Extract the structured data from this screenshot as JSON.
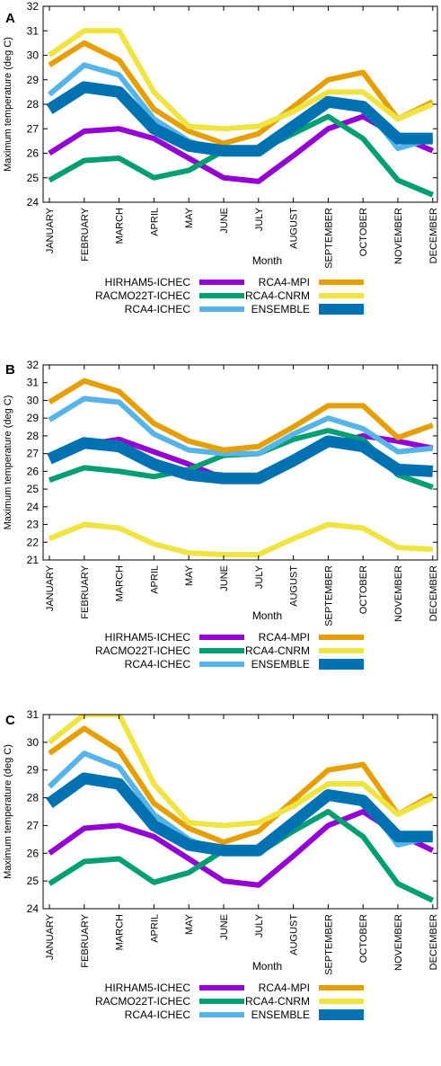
{
  "chart_data": [
    {
      "panel": "A",
      "type": "line",
      "xlabel": "Month",
      "ylabel": "Maximum temperature (deg C)",
      "ylim": [
        24,
        32
      ],
      "yticks": [
        "24",
        "25",
        "26",
        "27",
        "28",
        "29",
        "30",
        "31",
        "32"
      ],
      "categories": [
        "JANUARY",
        "FEBRUARY",
        "MARCH",
        "APRIL",
        "MAY",
        "JUNE",
        "JULY",
        "AUGUST",
        "SEPTEMBER",
        "OCTOBER",
        "NOVEMBER",
        "DECEMBER"
      ],
      "grid": false,
      "legend_position": "bottom",
      "series": [
        {
          "name": "HIRHAM5-ICHEC",
          "color": "#9400d3",
          "values": [
            26.0,
            26.9,
            27.0,
            26.6,
            25.8,
            25.0,
            24.85,
            25.9,
            27.0,
            27.5,
            26.7,
            26.1
          ]
        },
        {
          "name": "RACMO22T-ICHEC",
          "color": "#009e73",
          "values": [
            24.9,
            25.7,
            25.8,
            25.0,
            25.3,
            26.1,
            26.1,
            26.8,
            27.5,
            26.6,
            24.9,
            24.3
          ]
        },
        {
          "name": "RCA4-ICHEC",
          "color": "#56b4e9",
          "values": [
            28.4,
            29.6,
            29.2,
            27.4,
            26.5,
            26.0,
            26.0,
            27.0,
            28.2,
            28.0,
            26.2,
            26.6
          ]
        },
        {
          "name": "RCA4-MPI",
          "color": "#e69f00",
          "values": [
            29.6,
            30.5,
            29.8,
            27.8,
            26.9,
            26.4,
            26.8,
            27.9,
            29.0,
            29.3,
            27.4,
            28.1
          ]
        },
        {
          "name": "RCA4-CNRM",
          "color": "#f0e442",
          "values": [
            30.0,
            31.0,
            31.0,
            28.5,
            27.1,
            27.0,
            27.1,
            27.7,
            28.5,
            28.5,
            27.4,
            28.0
          ]
        },
        {
          "name": "ENSEMBLE",
          "color": "#0072b2",
          "values": [
            27.8,
            28.7,
            28.5,
            27.0,
            26.3,
            26.1,
            26.1,
            27.1,
            28.1,
            27.9,
            26.6,
            26.6
          ]
        }
      ]
    },
    {
      "panel": "B",
      "type": "line",
      "xlabel": "Month",
      "ylabel": "Maximum temperature (deg C)",
      "ylim": [
        21,
        32
      ],
      "yticks": [
        "21",
        "22",
        "23",
        "24",
        "25",
        "26",
        "27",
        "28",
        "29",
        "30",
        "31",
        "32"
      ],
      "categories": [
        "JANUARY",
        "FEBRUARY",
        "MARCH",
        "APRIL",
        "MAY",
        "JUNE",
        "JULY",
        "AUGUST",
        "SEPTEMBER",
        "OCTOBER",
        "NOVEMBER",
        "DECEMBER"
      ],
      "grid": false,
      "legend_position": "bottom",
      "series": [
        {
          "name": "HIRHAM5-ICHEC",
          "color": "#9400d3",
          "values": [
            26.8,
            27.5,
            27.8,
            27.1,
            26.4,
            25.6,
            25.6,
            26.5,
            27.5,
            28.0,
            27.7,
            27.3
          ]
        },
        {
          "name": "RACMO22T-ICHEC",
          "color": "#009e73",
          "values": [
            25.5,
            26.2,
            26.0,
            25.7,
            26.1,
            26.9,
            27.0,
            27.8,
            28.3,
            27.8,
            25.8,
            25.1
          ]
        },
        {
          "name": "RCA4-ICHEC",
          "color": "#56b4e9",
          "values": [
            28.9,
            30.1,
            29.9,
            28.1,
            27.2,
            27.0,
            27.0,
            28.1,
            29.0,
            28.4,
            27.1,
            27.3
          ]
        },
        {
          "name": "RCA4-MPI",
          "color": "#e69f00",
          "values": [
            29.9,
            31.1,
            30.5,
            28.7,
            27.7,
            27.2,
            27.4,
            28.5,
            29.7,
            29.7,
            27.9,
            28.6
          ]
        },
        {
          "name": "RCA4-CNRM",
          "color": "#f0e442",
          "values": [
            22.2,
            23.0,
            22.8,
            21.9,
            21.4,
            21.3,
            21.3,
            22.2,
            23.0,
            22.8,
            21.7,
            21.6
          ]
        },
        {
          "name": "ENSEMBLE",
          "color": "#0072b2",
          "values": [
            26.7,
            27.6,
            27.4,
            26.4,
            25.8,
            25.6,
            25.6,
            26.6,
            27.7,
            27.4,
            26.1,
            26.0
          ]
        }
      ]
    },
    {
      "panel": "C",
      "type": "line",
      "xlabel": "Month",
      "ylabel": "Maximum temperature (deg C)",
      "ylim": [
        24,
        31
      ],
      "yticks": [
        "24",
        "25",
        "26",
        "27",
        "28",
        "29",
        "30",
        "31"
      ],
      "categories": [
        "JANUARY",
        "FEBRUARY",
        "MARCH",
        "APRIL",
        "MAY",
        "JUNE",
        "JULY",
        "AUGUST",
        "SEPTEMBER",
        "OCTOBER",
        "NOVEMBER",
        "DECEMBER"
      ],
      "grid": false,
      "legend_position": "bottom",
      "series": [
        {
          "name": "HIRHAM5-ICHEC",
          "color": "#9400d3",
          "values": [
            26.0,
            26.9,
            27.0,
            26.6,
            25.8,
            25.0,
            24.85,
            25.9,
            27.0,
            27.5,
            26.7,
            26.1
          ]
        },
        {
          "name": "RACMO22T-ICHEC",
          "color": "#009e73",
          "values": [
            24.9,
            25.7,
            25.8,
            24.95,
            25.3,
            26.1,
            26.0,
            26.8,
            27.5,
            26.6,
            24.9,
            24.3
          ]
        },
        {
          "name": "RCA4-ICHEC",
          "color": "#56b4e9",
          "values": [
            28.4,
            29.6,
            29.1,
            27.4,
            26.5,
            26.0,
            26.0,
            27.0,
            28.2,
            28.0,
            26.3,
            26.6
          ]
        },
        {
          "name": "RCA4-MPI",
          "color": "#e69f00",
          "values": [
            29.6,
            30.5,
            29.7,
            27.8,
            26.9,
            26.4,
            26.8,
            27.9,
            29.0,
            29.2,
            27.4,
            28.1
          ]
        },
        {
          "name": "RCA4-CNRM",
          "color": "#f0e442",
          "values": [
            30.0,
            31.0,
            31.0,
            28.5,
            27.1,
            27.0,
            27.1,
            27.7,
            28.5,
            28.5,
            27.4,
            28.0
          ]
        },
        {
          "name": "ENSEMBLE",
          "color": "#0072b2",
          "values": [
            27.8,
            28.7,
            28.5,
            27.0,
            26.3,
            26.1,
            26.1,
            27.1,
            28.1,
            27.9,
            26.6,
            26.6
          ]
        }
      ]
    }
  ]
}
